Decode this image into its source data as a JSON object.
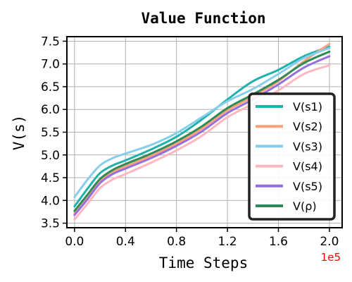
{
  "chart_data": {
    "type": "line",
    "title": "Value Function",
    "xlabel": "Time Steps",
    "ylabel": "V(s)",
    "x_offset_label": "1e5",
    "x_offset_color": "#ff0000",
    "xlim": [
      -0.06,
      2.1
    ],
    "ylim": [
      3.4,
      7.6
    ],
    "xticks": [
      0.0,
      0.4,
      0.8,
      1.2,
      1.6,
      2.0
    ],
    "xtick_labels": [
      "0.0",
      "0.4",
      "0.8",
      "1.2",
      "1.6",
      "2.0"
    ],
    "yticks": [
      3.5,
      4.0,
      4.5,
      5.0,
      5.5,
      6.0,
      6.5,
      7.0,
      7.5
    ],
    "ytick_labels": [
      "3.5",
      "4.0",
      "4.5",
      "5.0",
      "5.5",
      "6.0",
      "6.5",
      "7.0",
      "7.5"
    ],
    "grid": true,
    "legend_position": "lower-right",
    "x": [
      0.0,
      0.1,
      0.2,
      0.3,
      0.4,
      0.6,
      0.8,
      1.0,
      1.2,
      1.4,
      1.6,
      1.8,
      2.0
    ],
    "series": [
      {
        "name": "V(s1)",
        "color": "#20b2aa",
        "values": [
          3.87,
          4.25,
          4.6,
          4.77,
          4.88,
          5.12,
          5.4,
          5.78,
          6.22,
          6.62,
          6.87,
          7.17,
          7.38
        ]
      },
      {
        "name": "V(s2)",
        "color": "#ffa07a",
        "values": [
          3.72,
          4.05,
          4.42,
          4.63,
          4.75,
          4.98,
          5.25,
          5.58,
          5.98,
          6.28,
          6.62,
          7.06,
          7.44
        ]
      },
      {
        "name": "V(s3)",
        "color": "#87ceeb",
        "values": [
          4.07,
          4.45,
          4.77,
          4.93,
          5.03,
          5.22,
          5.48,
          5.83,
          6.18,
          6.45,
          6.78,
          7.13,
          7.35
        ]
      },
      {
        "name": "V(s4)",
        "color": "#ffb6c1",
        "values": [
          3.58,
          3.92,
          4.27,
          4.46,
          4.58,
          4.83,
          5.1,
          5.42,
          5.83,
          6.12,
          6.42,
          6.78,
          6.97
        ]
      },
      {
        "name": "V(s5)",
        "color": "#9370db",
        "values": [
          3.68,
          4.02,
          4.38,
          4.58,
          4.7,
          4.93,
          5.2,
          5.52,
          5.92,
          6.22,
          6.55,
          6.92,
          7.17
        ]
      },
      {
        "name": "V(ρ)",
        "color": "#2e8b57",
        "values": [
          3.77,
          4.12,
          4.47,
          4.67,
          4.8,
          5.03,
          5.3,
          5.63,
          6.03,
          6.33,
          6.65,
          7.02,
          7.27
        ]
      }
    ]
  }
}
